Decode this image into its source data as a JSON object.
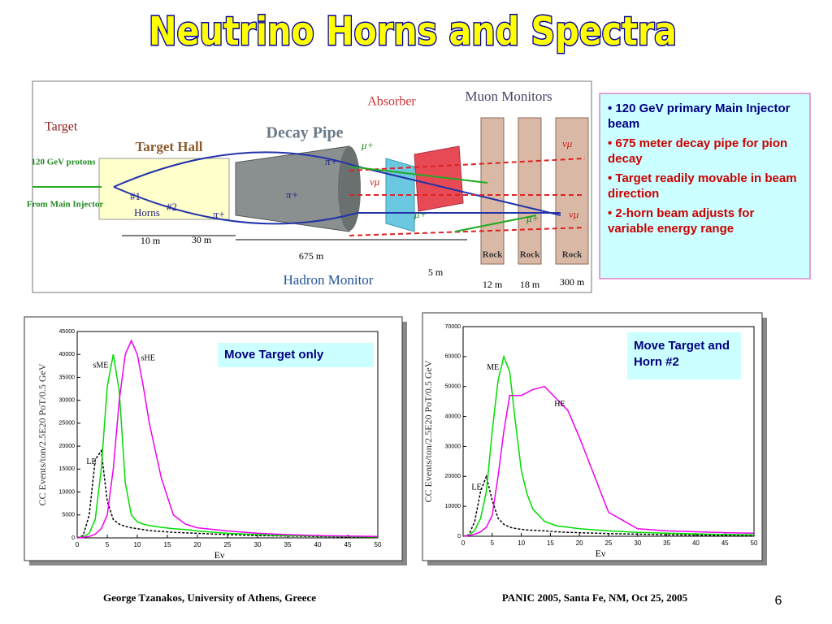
{
  "header": {
    "title": "Neutrino Horns and Spectra"
  },
  "diagram": {
    "labels": {
      "target": "Target",
      "protons": "120 GeV protons",
      "injector": "From Main Injector",
      "target_hall": "Target Hall",
      "horn1": "#1",
      "horn2": "#2",
      "horns": "Horns",
      "decay_pipe": "Decay Pipe",
      "absorber": "Absorber",
      "muon_monitors": "Muon Monitors",
      "hadron_monitor": "Hadron Monitor"
    },
    "rock": [
      "Rock",
      "Rock",
      "Rock"
    ],
    "distances": [
      "10 m",
      "30 m",
      "675 m",
      "5 m",
      "12 m",
      "18 m",
      "300 m"
    ],
    "particles": [
      "π+",
      "π+",
      "π+",
      "μ+",
      "νμ",
      "μ+",
      "μ+",
      "νμ",
      "νμ"
    ]
  },
  "bullets": [
    {
      "text": "• 120 GeV primary Main Injector beam",
      "color": "#000080"
    },
    {
      "text": "• 675 meter decay pipe for pion decay",
      "color": "#cc0000"
    },
    {
      "text": "• Target readily movable in beam  direction",
      "color": "#cc0000"
    },
    {
      "text": "• 2-horn beam adjusts for variable energy range",
      "color": "#cc0000"
    }
  ],
  "chart_data": [
    {
      "type": "line",
      "y_label": "CC Events/ton/2.5E20 PoT/0.5 GeV",
      "x_label": "Eν",
      "annotation": "Move Target only",
      "xlim": [
        0,
        50
      ],
      "xticks": [
        0,
        5,
        10,
        15,
        20,
        25,
        30,
        35,
        40,
        45,
        50
      ],
      "ylim": [
        0,
        45000
      ],
      "yticks": [
        0,
        5000,
        10000,
        15000,
        20000,
        25000,
        30000,
        35000,
        40000,
        45000
      ],
      "x": [
        0,
        1,
        2,
        3,
        4,
        5,
        6,
        7,
        8,
        9,
        10,
        11,
        12,
        14,
        16,
        18,
        20,
        25,
        30,
        35,
        40,
        45,
        50
      ],
      "series": [
        {
          "name": "LE",
          "color": "#000000",
          "line_style": "dashed",
          "values": [
            0,
            500,
            5000,
            17000,
            19000,
            8000,
            4000,
            3000,
            2500,
            2200,
            2000,
            1800,
            1600,
            1400,
            1200,
            1100,
            1000,
            700,
            500,
            400,
            300,
            200,
            150
          ]
        },
        {
          "name": "sME",
          "color": "#00dd00",
          "line_style": "solid",
          "values": [
            0,
            200,
            1000,
            4000,
            15000,
            33000,
            40000,
            32000,
            12000,
            5000,
            3500,
            3000,
            2700,
            2300,
            2000,
            1800,
            1500,
            1000,
            700,
            500,
            400,
            300,
            200
          ]
        },
        {
          "name": "sHE",
          "color": "#ee00ee",
          "line_style": "solid",
          "values": [
            0,
            100,
            300,
            800,
            2000,
            5000,
            15000,
            30000,
            40000,
            43000,
            40000,
            33000,
            25000,
            13000,
            5000,
            3000,
            2200,
            1500,
            1000,
            700,
            500,
            400,
            300
          ]
        }
      ]
    },
    {
      "type": "line",
      "y_label": "CC Events/ton/2.5E20 PoT/0.5 GeV",
      "x_label": "Eν",
      "annotation": "Move Target and Horn #2",
      "xlim": [
        0,
        50
      ],
      "xticks": [
        0,
        5,
        10,
        15,
        20,
        25,
        30,
        35,
        40,
        45,
        50
      ],
      "ylim": [
        0,
        70000
      ],
      "yticks": [
        0,
        10000,
        20000,
        30000,
        40000,
        50000,
        60000,
        70000
      ],
      "x": [
        0,
        1,
        2,
        3,
        4,
        5,
        6,
        7,
        8,
        9,
        10,
        11,
        12,
        14,
        16,
        18,
        20,
        25,
        30,
        35,
        40,
        45,
        50
      ],
      "series": [
        {
          "name": "LE",
          "color": "#000000",
          "line_style": "dashed",
          "values": [
            0,
            500,
            5000,
            15000,
            20000,
            12000,
            6000,
            4000,
            3000,
            2600,
            2300,
            2100,
            2000,
            1800,
            1500,
            1300,
            1200,
            900,
            700,
            500,
            400,
            300,
            200
          ]
        },
        {
          "name": "ME",
          "color": "#00dd00",
          "line_style": "solid",
          "values": [
            0,
            300,
            2000,
            6000,
            15000,
            35000,
            52000,
            60000,
            55000,
            38000,
            22000,
            14000,
            9000,
            5000,
            3500,
            3000,
            2500,
            1800,
            1300,
            1000,
            800,
            600,
            500
          ]
        },
        {
          "name": "HE",
          "color": "#ee00ee",
          "line_style": "solid",
          "values": [
            0,
            200,
            700,
            1500,
            3000,
            7000,
            20000,
            35000,
            47000,
            47000,
            47000,
            48000,
            49000,
            50000,
            46000,
            42000,
            33000,
            8000,
            2500,
            1800,
            1500,
            1200,
            1000
          ]
        }
      ]
    }
  ],
  "footer": {
    "author": "George Tzanakos, University of Athens, Greece",
    "event": "PANIC 2005, Santa Fe, NM, Oct 25, 2005",
    "page": "6"
  }
}
